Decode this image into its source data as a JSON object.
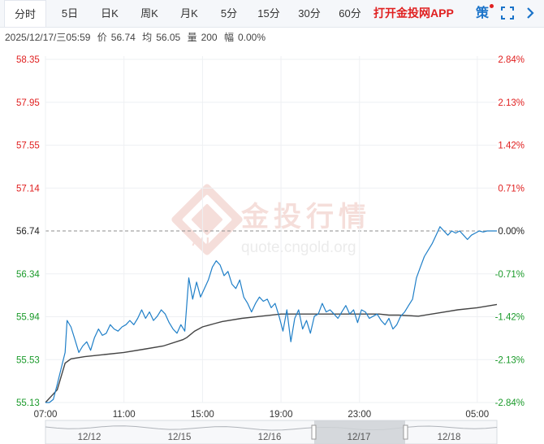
{
  "tabs": [
    {
      "label": "分时",
      "active": true
    },
    {
      "label": "5日",
      "active": false
    },
    {
      "label": "日K",
      "active": false
    },
    {
      "label": "周K",
      "active": false
    },
    {
      "label": "月K",
      "active": false
    },
    {
      "label": "5分",
      "active": false
    },
    {
      "label": "15分",
      "active": false
    },
    {
      "label": "30分",
      "active": false
    },
    {
      "label": "60分",
      "active": false
    }
  ],
  "promo_label": "打开金投网APP",
  "strategy_label": "策",
  "icons": {
    "fullscreen": "fullscreen-icon",
    "chevron": "chevron-right-icon"
  },
  "info": {
    "datetime": "2025/12/17/三05:59",
    "price_label": "价",
    "price": "56.74",
    "avg_label": "均",
    "avg": "56.05",
    "volume_label": "量",
    "volume": "200",
    "change_label": "幅",
    "change": "0.00%"
  },
  "watermark": {
    "brand": "金投行情",
    "url": "quote.cngold.org",
    "logo": "AU"
  },
  "colors": {
    "price_line": "#1f7fc8",
    "avg_line": "#444444",
    "up": "#e02020",
    "down": "#1a9a2a",
    "neutral": "#222222",
    "grid": "#eef0f3",
    "navigator_fill": "#cfd2d6"
  },
  "chart_data": {
    "type": "line",
    "x_ticks": [
      "07:00",
      "11:00",
      "15:00",
      "19:00",
      "23:00",
      "05:00"
    ],
    "y_ticks_price": [
      "58.35",
      "57.95",
      "57.55",
      "57.14",
      "56.74",
      "56.34",
      "55.94",
      "55.53",
      "55.13"
    ],
    "y_ticks_pct": [
      "2.84%",
      "2.13%",
      "1.42%",
      "0.71%",
      "0.00%",
      "-0.71%",
      "-1.42%",
      "-2.13%",
      "-2.84%"
    ],
    "ylim": [
      55.13,
      58.35
    ],
    "base_price": 56.74,
    "x_range_hours": [
      0,
      23
    ],
    "series": [
      {
        "role": "price",
        "x": [
          0,
          0.2,
          0.4,
          0.6,
          0.8,
          1.0,
          1.1,
          1.3,
          1.5,
          1.7,
          1.9,
          2.1,
          2.3,
          2.5,
          2.7,
          2.9,
          3.1,
          3.3,
          3.5,
          3.7,
          3.9,
          4.1,
          4.3,
          4.5,
          4.7,
          4.9,
          5.1,
          5.3,
          5.5,
          5.7,
          5.9,
          6.1,
          6.3,
          6.5,
          6.7,
          6.9,
          7.1,
          7.3,
          7.5,
          7.7,
          7.9,
          8.1,
          8.3,
          8.5,
          8.7,
          8.9,
          9.1,
          9.3,
          9.5,
          9.7,
          9.9,
          10.1,
          10.3,
          10.5,
          10.7,
          10.9,
          11.1,
          11.3,
          11.5,
          11.7,
          11.9,
          12.1,
          12.3,
          12.5,
          12.7,
          12.9,
          13.1,
          13.3,
          13.5,
          13.7,
          13.9,
          14.1,
          14.3,
          14.5,
          14.7,
          14.9,
          15.1,
          15.3,
          15.5,
          15.7,
          15.9,
          16.1,
          16.3,
          16.5,
          16.7,
          16.9,
          17.1,
          17.3,
          17.5,
          17.7,
          17.9,
          18.1,
          18.3,
          18.5,
          18.7,
          18.9,
          19.1,
          19.3,
          19.5,
          19.7,
          19.9,
          20.1,
          20.3,
          20.5,
          20.7,
          20.9,
          21.1,
          21.3,
          21.5,
          21.7,
          21.9,
          22.1,
          22.3,
          22.5,
          22.7,
          22.9,
          23.0
        ],
        "values": [
          55.13,
          55.13,
          55.16,
          55.3,
          55.45,
          55.6,
          55.9,
          55.84,
          55.72,
          55.6,
          55.66,
          55.7,
          55.62,
          55.74,
          55.82,
          55.76,
          55.78,
          55.86,
          55.82,
          55.8,
          55.84,
          55.86,
          55.9,
          55.86,
          55.92,
          56.0,
          55.92,
          55.98,
          55.9,
          55.94,
          56.0,
          55.96,
          55.88,
          55.82,
          55.78,
          55.86,
          55.8,
          56.3,
          56.1,
          56.26,
          56.12,
          56.2,
          56.28,
          56.4,
          56.46,
          56.42,
          56.32,
          56.36,
          56.24,
          56.2,
          56.28,
          56.12,
          56.06,
          55.98,
          56.06,
          56.12,
          56.08,
          56.1,
          56.02,
          56.06,
          55.94,
          55.8,
          56.0,
          55.7,
          55.92,
          56.0,
          55.82,
          55.9,
          55.78,
          55.94,
          55.96,
          56.06,
          55.98,
          56.0,
          55.96,
          55.92,
          55.98,
          56.04,
          55.96,
          56.0,
          55.88,
          56.0,
          55.98,
          55.92,
          55.94,
          55.96,
          55.9,
          55.86,
          55.92,
          55.82,
          55.86,
          55.94,
          55.98,
          56.04,
          56.1,
          56.3,
          56.4,
          56.5,
          56.56,
          56.62,
          56.7,
          56.78,
          56.74,
          56.7,
          56.74,
          56.72,
          56.74,
          56.7,
          56.66,
          56.7,
          56.72,
          56.74,
          56.73,
          56.74,
          56.74,
          56.74,
          56.74
        ]
      },
      {
        "role": "average",
        "x": [
          0,
          0.6,
          1.0,
          1.3,
          2.0,
          3.0,
          4.0,
          5.0,
          6.0,
          7.0,
          7.2,
          7.6,
          8.0,
          8.6,
          9.0,
          10.0,
          11.0,
          12.0,
          13.0,
          14.0,
          15.0,
          16.0,
          17.0,
          17.5,
          18.0,
          19.0,
          20.0,
          21.0,
          22.0,
          23.0
        ],
        "values": [
          55.13,
          55.25,
          55.5,
          55.54,
          55.56,
          55.58,
          55.6,
          55.63,
          55.66,
          55.72,
          55.74,
          55.8,
          55.84,
          55.87,
          55.89,
          55.92,
          55.94,
          55.96,
          55.96,
          55.96,
          55.96,
          55.96,
          55.96,
          55.95,
          55.95,
          55.94,
          55.97,
          56.0,
          56.02,
          56.05
        ]
      }
    ],
    "navigator": {
      "labels": [
        "12/12",
        "12/15",
        "12/16",
        "12/17",
        "12/18"
      ],
      "selected": "12/17"
    }
  }
}
